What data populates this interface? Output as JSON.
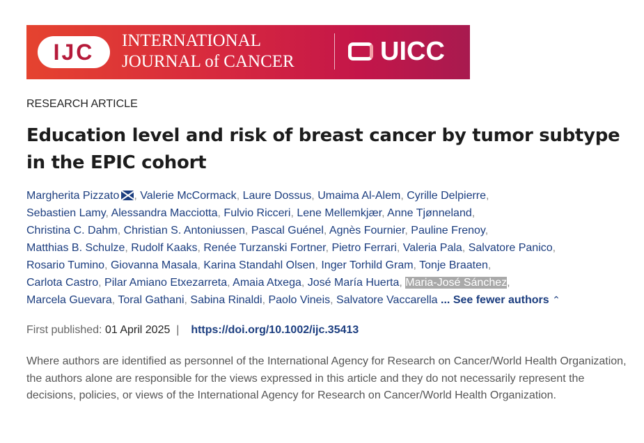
{
  "banner": {
    "logo_ijc": "IJC",
    "journal_line1": "INTERNATIONAL",
    "journal_line2": "JOURNAL of CANCER",
    "partner": "UICC"
  },
  "article_type": "RESEARCH ARTICLE",
  "title": "Education level and risk of breast cancer by tumor subtype in the EPIC cohort",
  "authors_lines": [
    [
      "Margherita Pizzato",
      "Valerie McCormack",
      "Laure Dossus",
      "Umaima Al-Alem",
      "Cyrille Delpierre"
    ],
    [
      "Sebastien Lamy",
      "Alessandra Macciotta",
      "Fulvio Ricceri",
      "Lene Mellemkjær",
      "Anne Tjønneland"
    ],
    [
      "Christina C. Dahm",
      "Christian S. Antoniussen",
      "Pascal Guénel",
      "Agnès Fournier",
      "Pauline Frenoy"
    ],
    [
      "Matthias B. Schulze",
      "Rudolf Kaaks",
      "Renée Turzanski Fortner",
      "Pietro Ferrari",
      "Valeria Pala",
      "Salvatore Panico"
    ],
    [
      "Rosario Tumino",
      "Giovanna Masala",
      "Karina Standahl Olsen",
      "Inger Torhild Gram",
      "Tonje Braaten"
    ],
    [
      "Carlota Castro",
      "Pilar Amiano Etxezarreta",
      "Amaia Atxega",
      "José María Huerta",
      "Maria-José Sánchez"
    ],
    [
      "Marcela Guevara",
      "Toral Gathani",
      "Sabina Rinaldi",
      "Paolo Vineis",
      "Salvatore Vaccarella"
    ]
  ],
  "highlighted_author": "Maria-José Sánchez",
  "see_fewer": "... See fewer authors",
  "see_fewer_icon": "chevron-up-icon",
  "corresponding_icon": "envelope-icon",
  "first_published_label": "First published:",
  "first_published_date": "01 April 2025",
  "doi": "https://doi.org/10.1002/ijc.35413",
  "note": "Where authors are identified as personnel of the International Agency for Research on Cancer/World Health Organization, the authors alone are responsible for the views expressed in this article and they do not necessarily represent the decisions, policies, or views of the International Agency for Research on Cancer/World Health Organization.",
  "colors": {
    "link": "#1b3d7f",
    "banner_start": "#e5432f",
    "banner_end": "#a81a4f"
  }
}
